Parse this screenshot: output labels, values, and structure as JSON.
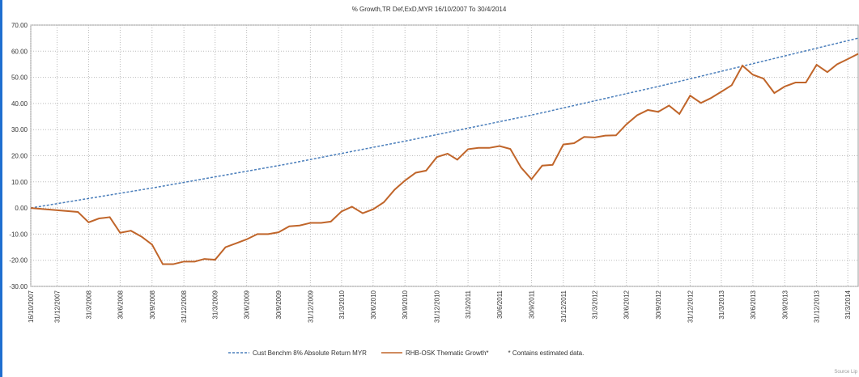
{
  "chart_data": {
    "type": "line",
    "title": "% Growth,TR Def,ExD,MYR 16/10/2007 To 30/4/2014",
    "xlim": [
      "16/10/2007",
      "30/4/2014"
    ],
    "xticks": [
      "16/10/2007",
      "31/12/2007",
      "31/3/2008",
      "30/6/2008",
      "30/9/2008",
      "31/12/2008",
      "31/3/2009",
      "30/6/2009",
      "30/9/2009",
      "31/12/2009",
      "31/3/2010",
      "30/6/2010",
      "30/9/2010",
      "31/12/2010",
      "31/3/2011",
      "30/6/2011",
      "30/9/2011",
      "31/12/2011",
      "31/3/2012",
      "30/6/2012",
      "30/9/2012",
      "31/12/2012",
      "31/3/2013",
      "30/6/2013",
      "30/9/2013",
      "31/12/2013",
      "31/3/2014"
    ],
    "ylim": [
      -30,
      70
    ],
    "yticks": [
      {
        "value": 70,
        "label": "70.00"
      },
      {
        "value": 60,
        "label": "60.00"
      },
      {
        "value": 50,
        "label": "50.00"
      },
      {
        "value": 40,
        "label": "40.00"
      },
      {
        "value": 30,
        "label": "30.00"
      },
      {
        "value": 20,
        "label": "20.00"
      },
      {
        "value": 10,
        "label": "10.00"
      },
      {
        "value": 0,
        "label": "0.00"
      },
      {
        "value": -10,
        "label": "-10.00"
      },
      {
        "value": -20,
        "label": "-20.00"
      },
      {
        "value": -30,
        "label": "-30.00"
      }
    ],
    "grid": true,
    "series": [
      {
        "name": "Cust Benchm 8% Absolute Return MYR",
        "color": "#4a7ebb",
        "dashed": true,
        "x": [
          "16/10/2007",
          "16/10/2008",
          "16/10/2009",
          "16/10/2010",
          "16/10/2011",
          "16/10/2012",
          "16/10/2013",
          "30/4/2014"
        ],
        "values": [
          0,
          8,
          16.6,
          26,
          36,
          47,
          58.7,
          65
        ]
      },
      {
        "name": "RHB-OSK Thematic Growth*",
        "color": "#c0652a",
        "dashed": false,
        "x": [
          "16/10/2007",
          "29/2/2008",
          "31/3/2008",
          "30/4/2008",
          "31/5/2008",
          "30/6/2008",
          "31/7/2008",
          "31/8/2008",
          "30/9/2008",
          "31/10/2008",
          "30/11/2008",
          "31/12/2008",
          "31/1/2009",
          "28/2/2009",
          "31/3/2009",
          "30/4/2009",
          "31/5/2009",
          "30/6/2009",
          "31/7/2009",
          "31/8/2009",
          "30/9/2009",
          "31/10/2009",
          "30/11/2009",
          "31/12/2009",
          "31/1/2010",
          "28/2/2010",
          "31/3/2010",
          "30/4/2010",
          "31/5/2010",
          "30/6/2010",
          "31/7/2010",
          "31/8/2010",
          "30/9/2010",
          "31/10/2010",
          "30/11/2010",
          "31/12/2010",
          "31/1/2011",
          "28/2/2011",
          "31/3/2011",
          "30/4/2011",
          "31/5/2011",
          "30/6/2011",
          "31/7/2011",
          "31/8/2011",
          "30/9/2011",
          "31/10/2011",
          "30/11/2011",
          "31/12/2011",
          "31/1/2012",
          "29/2/2012",
          "31/3/2012",
          "30/4/2012",
          "31/5/2012",
          "30/6/2012",
          "31/7/2012",
          "31/8/2012",
          "30/9/2012",
          "31/10/2012",
          "30/11/2012",
          "31/12/2012",
          "31/1/2013",
          "28/2/2013",
          "31/3/2013",
          "30/4/2013",
          "31/5/2013",
          "30/6/2013",
          "31/7/2013",
          "31/8/2013",
          "30/9/2013",
          "31/10/2013",
          "30/11/2013",
          "31/12/2013",
          "31/1/2014",
          "28/2/2014",
          "31/3/2014",
          "30/4/2014"
        ],
        "values": [
          0,
          -1.5,
          -5.5,
          -4,
          -3.5,
          -9.5,
          -8.7,
          -11,
          -14,
          -21.5,
          -21.5,
          -20.5,
          -20.5,
          -19.5,
          -19.8,
          -15,
          -13.5,
          -12,
          -10,
          -10,
          -9.3,
          -7,
          -6.7,
          -5.7,
          -5.7,
          -5.2,
          -1.3,
          0.5,
          -2,
          -0.5,
          2.2,
          7,
          10.5,
          13.5,
          14.3,
          19.5,
          20.8,
          18.5,
          22.5,
          23,
          23,
          23.7,
          22.6,
          15.5,
          11,
          16.2,
          16.5,
          24.3,
          24.8,
          27.2,
          27,
          27.7,
          27.8,
          32,
          35.5,
          37.5,
          36.8,
          39.2,
          36,
          43,
          40.2,
          42,
          44.5,
          47,
          54.5,
          51,
          49.5,
          44,
          46.5,
          48,
          48,
          54.8,
          52,
          55,
          57,
          59
        ]
      }
    ],
    "note": "* Contains estimated data.",
    "source": "Source Lip"
  }
}
